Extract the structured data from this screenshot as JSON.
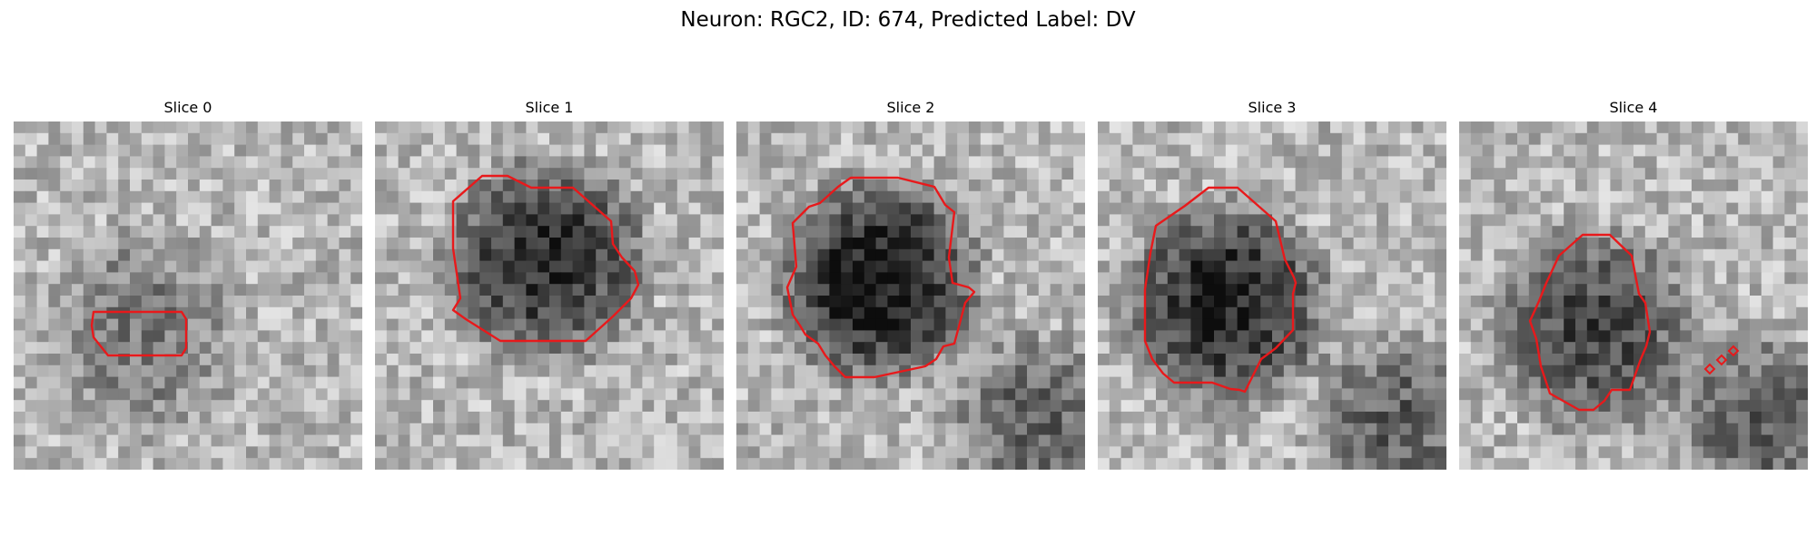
{
  "title": "Neuron: RGC2, ID: 674, Predicted Label: DV",
  "outline_color": "#e8191b",
  "panels": [
    {
      "label": "Slice 0",
      "center_dark": 0.25,
      "seed": 11
    },
    {
      "label": "Slice 1",
      "center_dark": 0.55,
      "seed": 23
    },
    {
      "label": "Slice 2",
      "center_dark": 0.65,
      "seed": 37
    },
    {
      "label": "Slice 3",
      "center_dark": 0.6,
      "seed": 41
    },
    {
      "label": "Slice 4",
      "center_dark": 0.45,
      "seed": 53
    }
  ]
}
